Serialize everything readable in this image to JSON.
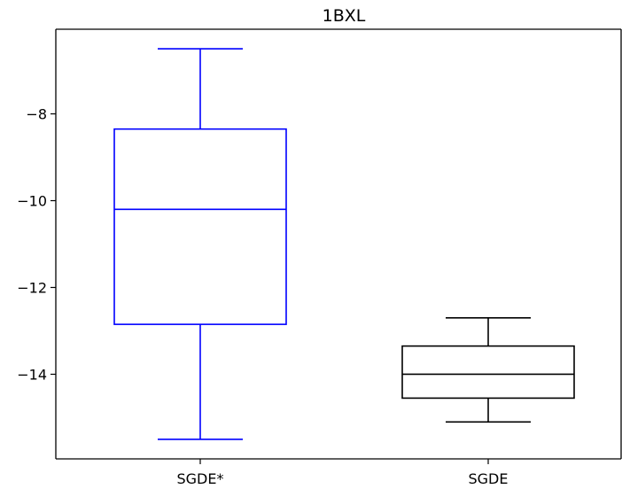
{
  "chart_data": {
    "type": "box",
    "title": "1BXL",
    "xlabel": "",
    "ylabel": "",
    "categories": [
      "SGDE*",
      "SGDE"
    ],
    "yticks": [
      -8,
      -10,
      -12,
      -14
    ],
    "ylim": [
      -15.95,
      -6.05
    ],
    "grid": false,
    "legend": "none",
    "series": [
      {
        "category": "SGDE*",
        "color": "#0000ff",
        "whisker_low": -15.5,
        "q1": -12.85,
        "median": -10.2,
        "q3": -8.35,
        "whisker_high": -6.5
      },
      {
        "category": "SGDE",
        "color": "#000000",
        "whisker_low": -15.1,
        "q1": -14.55,
        "median": -14.0,
        "q3": -13.35,
        "whisker_high": -12.7
      }
    ]
  }
}
